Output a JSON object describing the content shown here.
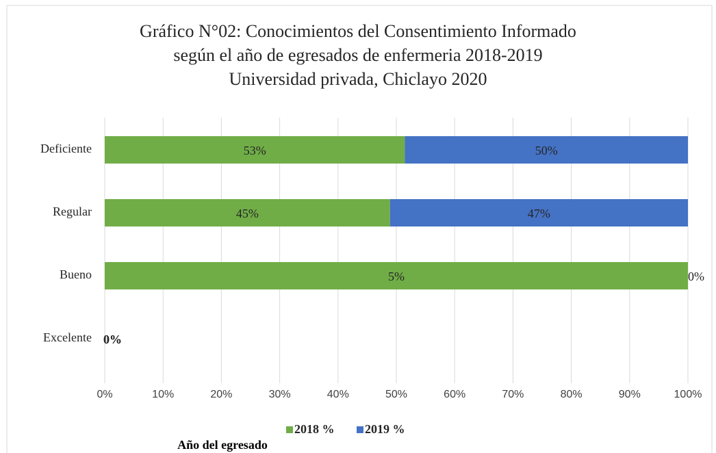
{
  "chart_data": {
    "type": "bar",
    "orientation": "horizontal",
    "stacking": "percent",
    "title": [
      "Gráfico N°02: Conocimientos del Consentimiento Informado",
      "según el año de egresados de enfermeria 2018-2019",
      "Universidad privada, Chiclayo 2020"
    ],
    "x_label": "Año del egresado",
    "categories": [
      "Deficiente",
      "Regular",
      "Bueno",
      "Excelente"
    ],
    "series": [
      {
        "name": "2018 %",
        "color": "#70ad47",
        "values": [
          53,
          45,
          5,
          0
        ],
        "value_labels": [
          "53%",
          "45%",
          "5%",
          "0%"
        ]
      },
      {
        "name": "2019 %",
        "color": "#4472c4",
        "values": [
          50,
          47,
          0,
          0
        ],
        "value_labels": [
          "50%",
          "47%",
          "0%",
          "0%"
        ]
      }
    ],
    "xlim": [
      0,
      100
    ],
    "xticks": [
      {
        "value": 0,
        "label": "0%"
      },
      {
        "value": 10,
        "label": "10%"
      },
      {
        "value": 20,
        "label": "20%"
      },
      {
        "value": 30,
        "label": "30%"
      },
      {
        "value": 40,
        "label": "40%"
      },
      {
        "value": 50,
        "label": "50%"
      },
      {
        "value": 60,
        "label": "60%"
      },
      {
        "value": 70,
        "label": "70%"
      },
      {
        "value": 80,
        "label": "80%"
      },
      {
        "value": 90,
        "label": "90%"
      },
      {
        "value": 100,
        "label": "100%"
      }
    ],
    "grid": true,
    "legend": "bottom"
  }
}
